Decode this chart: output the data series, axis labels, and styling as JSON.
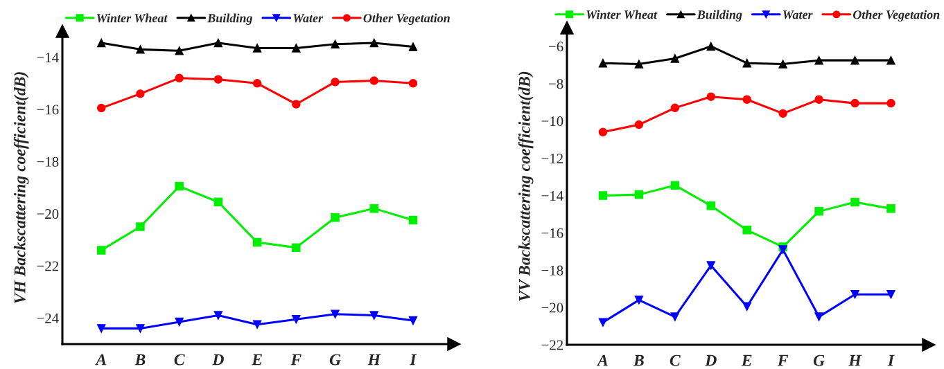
{
  "chart_data": [
    {
      "type": "line",
      "ylabel": "VH Backscattering coefficient(dB)",
      "categories": [
        "A",
        "B",
        "C",
        "D",
        "E",
        "F",
        "G",
        "H",
        "I"
      ],
      "ylim": [
        -25,
        -13
      ],
      "yticks": [
        -24,
        -22,
        -20,
        -18,
        -16,
        -14
      ],
      "grid": false,
      "legend": "top",
      "series": [
        {
          "name": "Winter Wheat",
          "color": "#00ee00",
          "marker": "square",
          "values": [
            -21.4,
            -20.5,
            -18.95,
            -19.55,
            -21.1,
            -21.3,
            -20.15,
            -19.8,
            -20.25
          ]
        },
        {
          "name": "Building",
          "color": "#000000",
          "marker": "triangle",
          "values": [
            -13.45,
            -13.7,
            -13.75,
            -13.45,
            -13.65,
            -13.65,
            -13.5,
            -13.45,
            -13.6
          ]
        },
        {
          "name": "Water",
          "color": "#0000ff",
          "marker": "triangle_down",
          "values": [
            -24.4,
            -24.4,
            -24.15,
            -23.9,
            -24.25,
            -24.05,
            -23.85,
            -23.9,
            -24.1
          ]
        },
        {
          "name": "Other Vegetation",
          "color": "#ff0000",
          "marker": "circle",
          "values": [
            -15.95,
            -15.4,
            -14.8,
            -14.85,
            -15.0,
            -15.8,
            -14.95,
            -14.9,
            -15.0
          ]
        }
      ]
    },
    {
      "type": "line",
      "ylabel": "VV Backscattering coefficient(dB)",
      "categories": [
        "A",
        "B",
        "C",
        "D",
        "E",
        "F",
        "G",
        "H",
        "I"
      ],
      "ylim": [
        -22,
        -5
      ],
      "yticks": [
        -22,
        -20,
        -18,
        -16,
        -14,
        -12,
        -10,
        -8,
        -6
      ],
      "grid": false,
      "legend": "top",
      "series": [
        {
          "name": "Winter Wheat",
          "color": "#00ee00",
          "marker": "square",
          "values": [
            -14.0,
            -13.95,
            -13.45,
            -14.55,
            -15.85,
            -16.75,
            -14.85,
            -14.35,
            -14.7
          ]
        },
        {
          "name": "Building",
          "color": "#000000",
          "marker": "triangle",
          "values": [
            -6.9,
            -6.95,
            -6.65,
            -6.0,
            -6.9,
            -6.95,
            -6.75,
            -6.75,
            -6.75
          ]
        },
        {
          "name": "Water",
          "color": "#0000ff",
          "marker": "triangle_down",
          "values": [
            -20.8,
            -19.6,
            -20.5,
            -17.75,
            -19.95,
            -16.9,
            -20.5,
            -19.3,
            -19.3
          ]
        },
        {
          "name": "Other Vegetation",
          "color": "#ff0000",
          "marker": "circle",
          "values": [
            -10.6,
            -10.2,
            -9.3,
            -8.7,
            -8.85,
            -9.6,
            -8.85,
            -9.05,
            -9.05
          ]
        }
      ]
    }
  ]
}
